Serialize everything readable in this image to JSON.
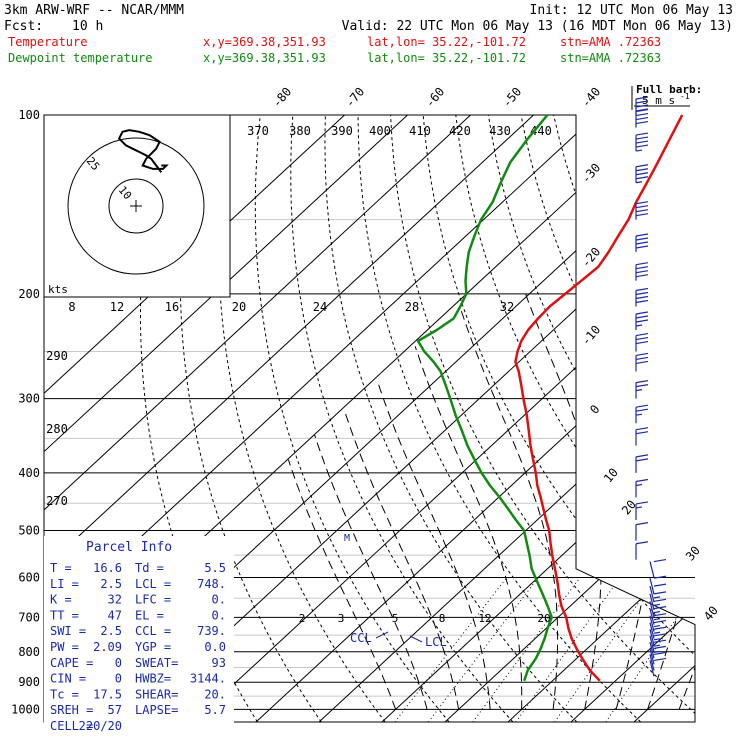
{
  "header": {
    "model": "3km ARW-WRF -- NCAR/MMM",
    "init": "Init: 12 UTC Mon 06 May 13",
    "fcst_label": "Fcst:",
    "fcst_value": "10 h",
    "valid": "Valid: 22 UTC Mon 06 May 13 (16 MDT Mon 06 May 13)",
    "temp_label": "Temperature",
    "temp_loc": "x,y=369.38,351.93",
    "temp_latlon": "lat,lon= 35.22,-101.72",
    "temp_stn": "stn=AMA .72363",
    "dew_label": "Dewpoint temperature",
    "dew_loc": "x,y=369.38,351.93",
    "dew_latlon": "lat,lon= 35.22,-101.72",
    "dew_stn": "stn=AMA .72363",
    "barb_key_1": "Full barb:",
    "barb_key_2": "5 m s",
    "barb_key_3": "-1"
  },
  "colors": {
    "temperature": "#e01010",
    "dewpoint": "#108a10",
    "hodograph": "#000000",
    "barbs": "#1a2aa8",
    "index_text": "#1a2aa8"
  },
  "chart_data": {
    "type": "line",
    "chart_kind": "skew-t log-p sounding",
    "y_scale": "log",
    "ylabel": "",
    "xlabel": "",
    "pressure_ticks": [
      "100",
      "200",
      "300",
      "400",
      "500",
      "600",
      "700",
      "800",
      "900",
      "1000"
    ],
    "temperature_skewed_ticks": [
      "-80",
      "-70",
      "-60",
      "-50",
      "-40",
      "-30",
      "-20",
      "-10",
      "0",
      "10",
      "20",
      "30",
      "40"
    ],
    "theta_e_labels": [
      "370",
      "380",
      "390",
      "400",
      "410",
      "420",
      "430",
      "440"
    ],
    "theta_left_labels": [
      "290",
      "280",
      "270"
    ],
    "mixing_ratio_labels_upper": [
      "8",
      "12",
      "16",
      "20",
      "24",
      "28",
      "32"
    ],
    "mixing_ratio_labels_lower": [
      "2",
      "3",
      "5",
      "8",
      "12",
      "20"
    ],
    "series": [
      {
        "name": "Temperature",
        "pressure_hpa": [
          895,
          860,
          820,
          790,
          760,
          730,
          700,
          670,
          640,
          610,
          580,
          550,
          520,
          500,
          480,
          460,
          440,
          420,
          400,
          380,
          360,
          340,
          320,
          300,
          285,
          270,
          260,
          250,
          240,
          230,
          220,
          210,
          200,
          190,
          180,
          170,
          160,
          150,
          140,
          130,
          120,
          110,
          100
        ],
        "temperature_c": [
          17.5,
          14.2,
          10.8,
          8.3,
          5.8,
          3.5,
          1.3,
          -1.4,
          -3.8,
          -6.2,
          -8.8,
          -11.6,
          -14.4,
          -16.3,
          -18.6,
          -20.9,
          -23.3,
          -25.9,
          -28.3,
          -31.0,
          -33.8,
          -36.6,
          -39.6,
          -43.0,
          -45.6,
          -48.4,
          -50.6,
          -52.0,
          -53.2,
          -54.0,
          -54.4,
          -54.6,
          -54.3,
          -54.0,
          -53.7,
          -54.6,
          -55.8,
          -57.0,
          -58.8,
          -60.4,
          -62.2,
          -64.2,
          -66.4
        ]
      },
      {
        "name": "Dewpoint temperature",
        "pressure_hpa": [
          895,
          860,
          820,
          790,
          760,
          730,
          700,
          670,
          640,
          610,
          580,
          550,
          520,
          500,
          480,
          460,
          440,
          420,
          400,
          380,
          360,
          340,
          320,
          300,
          285,
          270,
          260,
          250,
          240,
          230,
          220,
          210,
          200,
          190,
          180,
          170,
          160,
          150,
          140,
          130,
          120,
          110,
          100
        ],
        "temperature_c": [
          5.5,
          4.3,
          3.5,
          2.6,
          1.5,
          0.2,
          -1.0,
          -3.6,
          -6.4,
          -9.4,
          -12.5,
          -15.2,
          -18.2,
          -20.3,
          -23.4,
          -26.5,
          -29.8,
          -33.4,
          -36.9,
          -40.3,
          -43.8,
          -47.2,
          -50.9,
          -54.6,
          -57.6,
          -60.8,
          -63.6,
          -66.8,
          -69.6,
          -68.5,
          -67.8,
          -68.8,
          -70.0,
          -72.4,
          -74.6,
          -76.8,
          -78.6,
          -80.4,
          -81.6,
          -83.6,
          -85.6,
          -86.8,
          -87.8
        ]
      }
    ],
    "wind_barbs": {
      "units": "m s-1",
      "pressure_hpa": [
        880,
        860,
        840,
        820,
        800,
        780,
        760,
        740,
        720,
        700,
        680,
        660,
        640,
        600,
        560,
        520,
        480,
        440,
        400,
        360,
        330,
        300,
        270,
        250,
        230,
        210,
        190,
        170,
        150,
        130,
        115,
        105,
        100
      ],
      "speed_ms": [
        5,
        6,
        8,
        8,
        9,
        9,
        9,
        9,
        9,
        8,
        8,
        7,
        7,
        6,
        6,
        7,
        8,
        9,
        10,
        12,
        13,
        14,
        16,
        17,
        18,
        20,
        22,
        25,
        27,
        28,
        29,
        30,
        30
      ],
      "direction_deg": [
        200,
        205,
        210,
        215,
        220,
        225,
        225,
        228,
        230,
        232,
        235,
        238,
        240,
        245,
        250,
        255,
        258,
        260,
        262,
        264,
        266,
        268,
        270,
        270,
        270,
        271,
        272,
        273,
        274,
        275,
        276,
        277,
        278
      ]
    },
    "hodograph": {
      "ring_labels": [
        "10",
        "25"
      ],
      "units": "kts",
      "u_kts": [
        15,
        12,
        9,
        6,
        2,
        -2,
        -6,
        -8,
        -10,
        -8,
        -4,
        2,
        8,
        14,
        12,
        6,
        4,
        10,
        16,
        18,
        15
      ],
      "v_kts": [
        20,
        24,
        28,
        30,
        32,
        34,
        36,
        38,
        40,
        44,
        45,
        44,
        42,
        38,
        34,
        28,
        24,
        22,
        22,
        24,
        24
      ]
    },
    "markers": {
      "ccl_label": "CCL",
      "lcl_label": "LCL",
      "m_label": "M"
    }
  },
  "parcel_info": {
    "title": "Parcel Info",
    "rows": [
      [
        "T  =",
        "16.6",
        "Td =",
        "5.5"
      ],
      [
        "LI =",
        "2.5",
        "LCL =",
        "748."
      ],
      [
        "K  =",
        "32",
        "LFC =",
        "0."
      ],
      [
        "TT =",
        "47",
        "EL  =",
        "0."
      ],
      [
        "SWI =",
        "2.5",
        "CCL =",
        "739."
      ],
      [
        "PW =",
        "2.09",
        "YGP =",
        "0.0"
      ],
      [
        "CAPE =",
        "0",
        "SWEAT=",
        "93"
      ],
      [
        "CIN =",
        "0",
        "HWBZ=",
        "3144."
      ],
      [
        "Tc =",
        "17.5",
        "SHEAR=",
        "20."
      ],
      [
        "SREH =",
        "57",
        "LAPSE=",
        "5.7"
      ],
      [
        "CELL =",
        "220/20",
        "",
        ""
      ]
    ]
  }
}
